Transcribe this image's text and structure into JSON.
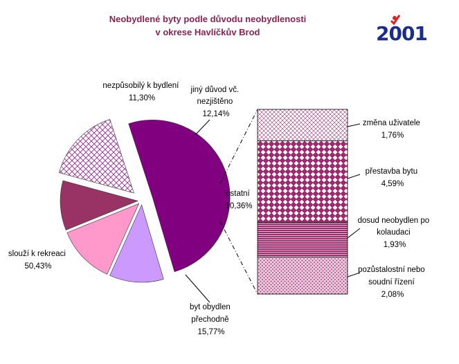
{
  "title": {
    "line1": "Neobydlené byty podle důvodu neobydlenosti",
    "line2": "v okrese Havlíčkův Brod"
  },
  "logo": {
    "text": "2001",
    "icon": "census-2001-logo"
  },
  "colors": {
    "title": "#8B2252",
    "rekreace": "#800080",
    "nezpusobily": "#CC99FF",
    "jiny": "#FF99CC",
    "ostatni": "#993366",
    "prechodne": "#C090C8",
    "bar_pattern": "#9E2A6E"
  },
  "chart_data": [
    {
      "type": "pie",
      "title": "Neobydlené byty podle důvodu neobydlenosti v okrese Havlíčkův Brod",
      "slices": [
        {
          "label": "slouží k rekreaci",
          "value": 50.43,
          "display": "50,43%"
        },
        {
          "label": "nezpůsobilý k bydlení",
          "value": 11.3,
          "display": "11,30%"
        },
        {
          "label": "jiný důvod vč. nezjištěno",
          "value": 12.14,
          "display": "12,14%"
        },
        {
          "label": "ostatní",
          "value": 10.36,
          "display": "10,36%"
        },
        {
          "label": "byt obydlen přechodně",
          "value": 15.77,
          "display": "15,77%"
        }
      ]
    },
    {
      "type": "bar",
      "stacked": true,
      "breakdown_of": "ostatní",
      "segments": [
        {
          "label": "změna uživatele",
          "value": 1.76,
          "display": "1,76%"
        },
        {
          "label": "přestavba bytu",
          "value": 4.59,
          "display": "4,59%"
        },
        {
          "label": "dosud neobydlen po kolaudaci",
          "value": 1.93,
          "display": "1,93%"
        },
        {
          "label": "pozůstalostní nebo soudní řízení",
          "value": 2.08,
          "display": "2,08%"
        }
      ]
    }
  ],
  "labels": {
    "rekreace": [
      "slouží k rekreaci",
      "50,43%"
    ],
    "nezpusobily": [
      "nezpůsobilý k bydlení",
      "11,30%"
    ],
    "jiny": [
      "jiný důvod vč.",
      "nezjištěno",
      "12,14%"
    ],
    "ostatni": [
      "ostatní",
      "10,36%"
    ],
    "prechodne": [
      "byt obydlen",
      "přechodně",
      "15,77%"
    ],
    "zmena": [
      "změna uživatele",
      "1,76%"
    ],
    "prestavba": [
      "přestavba bytu",
      "4,59%"
    ],
    "dosud": [
      "dosud neobydlen po",
      "kolaudaci",
      "1,93%"
    ],
    "pozustalost": [
      "pozůstalostní nebo",
      "soudní řízení",
      "2,08%"
    ]
  }
}
